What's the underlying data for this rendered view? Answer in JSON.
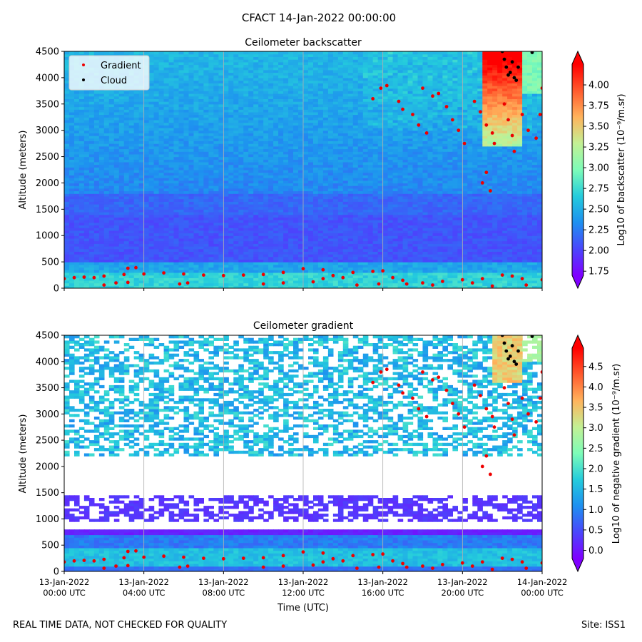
{
  "figure": {
    "title": "CFACT 14-Jan-2022 00:00:00",
    "footer_left": "REAL TIME DATA, NOT CHECKED FOR QUALITY",
    "footer_right": "Site: ISS1",
    "xlabel": "Time (UTC)"
  },
  "colors": {
    "gradient_marker": "#ee0000",
    "cloud_marker": "#000000",
    "cmap": [
      "#7f00ff",
      "#4a46fc",
      "#1e90f0",
      "#24ccdc",
      "#7dfcb8",
      "#c3f094",
      "#ffb35c",
      "#ff5a2d",
      "#ff0000"
    ]
  },
  "chart_data": [
    {
      "type": "heatmap",
      "title": "Ceilometer backscatter",
      "ylabel": "Altitude (meters)",
      "ylim": [
        0,
        4500
      ],
      "yticks": [
        0,
        500,
        1000,
        1500,
        2000,
        2500,
        3000,
        3500,
        4000,
        4500
      ],
      "xticks": [
        "00:00",
        "04:00",
        "08:00",
        "12:00",
        "16:00",
        "20:00",
        "24:00"
      ],
      "xlim_hours": [
        0,
        24
      ],
      "grid": "vertical lines at tick positions",
      "legend": {
        "position": "top-left",
        "entries": [
          "Gradient",
          "Cloud"
        ]
      },
      "colorbar": {
        "label": "Log10 of backscatter (10⁻⁹/m.sr)",
        "range": [
          1.7,
          4.25
        ],
        "ticks": [
          "1.75",
          "2.00",
          "2.25",
          "2.50",
          "2.75",
          "3.00",
          "3.25",
          "3.50",
          "3.75",
          "4.00"
        ],
        "extend": "both"
      },
      "field_description": "near-surface layer ~2.6-2.8 below 300 m; ~2.1 from 500-1700 m; ~2.4 above 2000 m; values above 3.5 near 4000-4500 m after 21:00",
      "series": [
        {
          "name": "Gradient",
          "points": [
            [
              0.0,
              180
            ],
            [
              0.5,
              200
            ],
            [
              1.0,
              210
            ],
            [
              1.5,
              200
            ],
            [
              2.0,
              230
            ],
            [
              3.0,
              260
            ],
            [
              3.2,
              380
            ],
            [
              3.6,
              390
            ],
            [
              4.0,
              270
            ],
            [
              5.0,
              290
            ],
            [
              6.0,
              270
            ],
            [
              7.0,
              250
            ],
            [
              8.0,
              240
            ],
            [
              9.0,
              250
            ],
            [
              10.0,
              260
            ],
            [
              11.0,
              300
            ],
            [
              12.0,
              370
            ],
            [
              13.0,
              350
            ],
            [
              13.5,
              240
            ],
            [
              14.5,
              300
            ],
            [
              15.5,
              320
            ],
            [
              16.0,
              330
            ],
            [
              16.5,
              200
            ],
            [
              17.0,
              150
            ],
            [
              18.0,
              100
            ],
            [
              19.0,
              130
            ],
            [
              20.0,
              160
            ],
            [
              21.0,
              180
            ],
            [
              22.0,
              250
            ],
            [
              22.5,
              230
            ],
            [
              23.0,
              180
            ],
            [
              24.0,
              160
            ],
            [
              2.0,
              60
            ],
            [
              2.6,
              100
            ],
            [
              3.2,
              110
            ],
            [
              5.8,
              80
            ],
            [
              6.2,
              100
            ],
            [
              10.0,
              80
            ],
            [
              11.0,
              100
            ],
            [
              12.5,
              120
            ],
            [
              13.0,
              180
            ],
            [
              14.0,
              200
            ],
            [
              14.7,
              60
            ],
            [
              15.8,
              80
            ],
            [
              17.2,
              80
            ],
            [
              18.5,
              60
            ],
            [
              20.5,
              100
            ],
            [
              21.5,
              40
            ],
            [
              23.2,
              60
            ],
            [
              15.5,
              3600
            ],
            [
              15.9,
              3800
            ],
            [
              16.2,
              3850
            ],
            [
              16.8,
              3550
            ],
            [
              17.0,
              3400
            ],
            [
              17.5,
              3300
            ],
            [
              17.8,
              3100
            ],
            [
              18.2,
              2950
            ],
            [
              18.0,
              3800
            ],
            [
              18.5,
              3650
            ],
            [
              18.8,
              3700
            ],
            [
              19.2,
              3450
            ],
            [
              19.5,
              3200
            ],
            [
              19.8,
              3000
            ],
            [
              20.1,
              2750
            ],
            [
              20.6,
              3550
            ],
            [
              20.9,
              3350
            ],
            [
              21.2,
              3100
            ],
            [
              21.5,
              2950
            ],
            [
              21.6,
              2750
            ],
            [
              21.2,
              2200
            ],
            [
              21.0,
              2000
            ],
            [
              21.4,
              1850
            ],
            [
              22.1,
              3500
            ],
            [
              22.3,
              3200
            ],
            [
              22.5,
              2900
            ],
            [
              22.6,
              2600
            ],
            [
              23.0,
              3300
            ],
            [
              23.3,
              3000
            ],
            [
              23.7,
              2850
            ],
            [
              23.9,
              3300
            ],
            [
              24.0,
              3800
            ]
          ]
        },
        {
          "name": "Cloud",
          "points": [
            [
              22.0,
              4500
            ],
            [
              22.1,
              4350
            ],
            [
              22.2,
              4200
            ],
            [
              22.3,
              4050
            ],
            [
              22.4,
              4100
            ],
            [
              22.5,
              4300
            ],
            [
              22.6,
              4000
            ],
            [
              22.7,
              3950
            ],
            [
              22.8,
              4200
            ],
            [
              23.5,
              4480
            ]
          ]
        }
      ]
    },
    {
      "type": "heatmap",
      "title": "Ceilometer gradient",
      "ylabel": "Altitude (meters)",
      "ylim": [
        0,
        4500
      ],
      "yticks": [
        0,
        500,
        1000,
        1500,
        2000,
        2500,
        3000,
        3500,
        4000,
        4500
      ],
      "xticks": [
        "00:00",
        "04:00",
        "08:00",
        "12:00",
        "16:00",
        "20:00",
        "24:00"
      ],
      "xlim_hours": [
        0,
        24
      ],
      "xtick_labels": [
        [
          "13-Jan-2022",
          "00:00 UTC"
        ],
        [
          "13-Jan-2022",
          "04:00 UTC"
        ],
        [
          "13-Jan-2022",
          "08:00 UTC"
        ],
        [
          "13-Jan-2022",
          "12:00 UTC"
        ],
        [
          "13-Jan-2022",
          "16:00 UTC"
        ],
        [
          "13-Jan-2022",
          "20:00 UTC"
        ],
        [
          "14-Jan-2022",
          "00:00 UTC"
        ]
      ],
      "xlabel": "Time (UTC)",
      "grid": "vertical lines at tick positions",
      "colorbar": {
        "label": "Log10 of negative gradient (10⁻⁹/m.sr)",
        "range": [
          -0.2,
          4.95
        ],
        "ticks": [
          "0.0",
          "0.5",
          "1.0",
          "1.5",
          "2.0",
          "2.5",
          "3.0",
          "3.5",
          "4.0",
          "4.5"
        ],
        "extend": "both"
      },
      "field_description": "white where no negative gradient; band 0.5-1.5 at 0-750 m; patchy ~0.3 around 1000-1450 m; patchy 1.0-2.0 at 2200-4500 m",
      "series": [
        {
          "name": "Gradient",
          "points": [
            [
              0.0,
              180
            ],
            [
              0.5,
              200
            ],
            [
              1.0,
              210
            ],
            [
              1.5,
              200
            ],
            [
              2.0,
              230
            ],
            [
              3.0,
              260
            ],
            [
              3.2,
              380
            ],
            [
              3.6,
              390
            ],
            [
              4.0,
              270
            ],
            [
              5.0,
              290
            ],
            [
              6.0,
              270
            ],
            [
              7.0,
              250
            ],
            [
              8.0,
              240
            ],
            [
              9.0,
              250
            ],
            [
              10.0,
              260
            ],
            [
              11.0,
              300
            ],
            [
              12.0,
              370
            ],
            [
              13.0,
              350
            ],
            [
              13.5,
              240
            ],
            [
              14.5,
              300
            ],
            [
              15.5,
              320
            ],
            [
              16.0,
              330
            ],
            [
              16.5,
              200
            ],
            [
              17.0,
              150
            ],
            [
              18.0,
              100
            ],
            [
              19.0,
              130
            ],
            [
              20.0,
              160
            ],
            [
              21.0,
              180
            ],
            [
              22.0,
              250
            ],
            [
              22.5,
              230
            ],
            [
              23.0,
              180
            ],
            [
              24.0,
              160
            ],
            [
              2.0,
              60
            ],
            [
              2.6,
              100
            ],
            [
              3.2,
              110
            ],
            [
              5.8,
              80
            ],
            [
              6.2,
              100
            ],
            [
              10.0,
              80
            ],
            [
              11.0,
              100
            ],
            [
              12.5,
              120
            ],
            [
              13.0,
              180
            ],
            [
              14.0,
              200
            ],
            [
              14.7,
              60
            ],
            [
              15.8,
              80
            ],
            [
              17.2,
              80
            ],
            [
              18.5,
              60
            ],
            [
              20.5,
              100
            ],
            [
              21.5,
              40
            ],
            [
              23.2,
              60
            ],
            [
              15.5,
              3600
            ],
            [
              15.9,
              3800
            ],
            [
              16.2,
              3850
            ],
            [
              16.8,
              3550
            ],
            [
              17.0,
              3400
            ],
            [
              17.5,
              3300
            ],
            [
              17.8,
              3100
            ],
            [
              18.2,
              2950
            ],
            [
              18.0,
              3800
            ],
            [
              18.5,
              3650
            ],
            [
              18.8,
              3700
            ],
            [
              19.2,
              3450
            ],
            [
              19.5,
              3200
            ],
            [
              19.8,
              3000
            ],
            [
              20.1,
              2750
            ],
            [
              20.6,
              3550
            ],
            [
              20.9,
              3350
            ],
            [
              21.2,
              3100
            ],
            [
              21.5,
              2950
            ],
            [
              21.6,
              2750
            ],
            [
              21.2,
              2200
            ],
            [
              21.0,
              2000
            ],
            [
              21.4,
              1850
            ],
            [
              22.1,
              3500
            ],
            [
              22.3,
              3200
            ],
            [
              22.5,
              2900
            ],
            [
              22.6,
              2600
            ],
            [
              23.0,
              3300
            ],
            [
              23.3,
              3000
            ],
            [
              23.7,
              2850
            ],
            [
              23.9,
              3300
            ],
            [
              24.0,
              3800
            ]
          ]
        },
        {
          "name": "Cloud",
          "points": [
            [
              22.0,
              4500
            ],
            [
              22.1,
              4350
            ],
            [
              22.2,
              4200
            ],
            [
              22.3,
              4050
            ],
            [
              22.4,
              4100
            ],
            [
              22.5,
              4300
            ],
            [
              22.6,
              4000
            ],
            [
              22.7,
              3950
            ],
            [
              22.8,
              4200
            ],
            [
              23.5,
              4480
            ]
          ]
        }
      ]
    }
  ]
}
